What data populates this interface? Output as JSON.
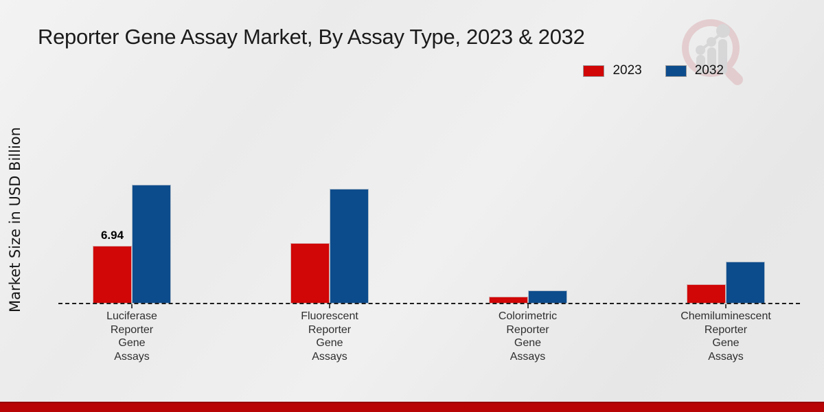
{
  "page": {
    "title": "Reporter Gene Assay Market, By Assay Type, 2023 & 2032",
    "ylabel": "Market Size in USD Billion"
  },
  "legend": {
    "position": "top-right",
    "items": [
      {
        "label": "2023",
        "color": "#d10606"
      },
      {
        "label": "2032",
        "color": "#0d4c8c"
      }
    ]
  },
  "watermark": "magnifier-growth-chart-logo",
  "colors": {
    "bar_2023": "#d10606",
    "bar_2032": "#0d4c8c",
    "footer_band": "#b80404",
    "background": "#ececec",
    "axis": "#1c1c1c"
  },
  "chart_data": {
    "type": "bar",
    "title": "Reporter Gene Assay Market, By Assay Type, 2023 & 2032",
    "xlabel": "",
    "ylabel": "Market Size in USD Billion",
    "ylim": [
      0,
      16
    ],
    "grid": false,
    "axis_style": "dashed-baseline-only",
    "legend_position": "top-right",
    "categories": [
      "Luciferase Reporter Gene Assays",
      "Fluorescent Reporter Gene Assays",
      "Colorimetric Reporter Gene Assays",
      "Chemiluminescent Reporter Gene Assays"
    ],
    "category_lines": [
      [
        "Luciferase",
        "Reporter",
        "Gene",
        "Assays"
      ],
      [
        "Fluorescent",
        "Reporter",
        "Gene",
        "Assays"
      ],
      [
        "Colorimetric",
        "Reporter",
        "Gene",
        "Assays"
      ],
      [
        "Chemiluminescent",
        "Reporter",
        "Gene",
        "Assays"
      ]
    ],
    "series": [
      {
        "name": "2023",
        "color": "#d10606",
        "values": [
          6.94,
          7.25,
          0.85,
          2.35
        ],
        "data_labels": [
          "6.94",
          "",
          "",
          ""
        ]
      },
      {
        "name": "2032",
        "color": "#0d4c8c",
        "values": [
          14.3,
          13.8,
          1.6,
          5.05
        ],
        "data_labels": [
          "",
          "",
          "",
          ""
        ]
      }
    ]
  }
}
